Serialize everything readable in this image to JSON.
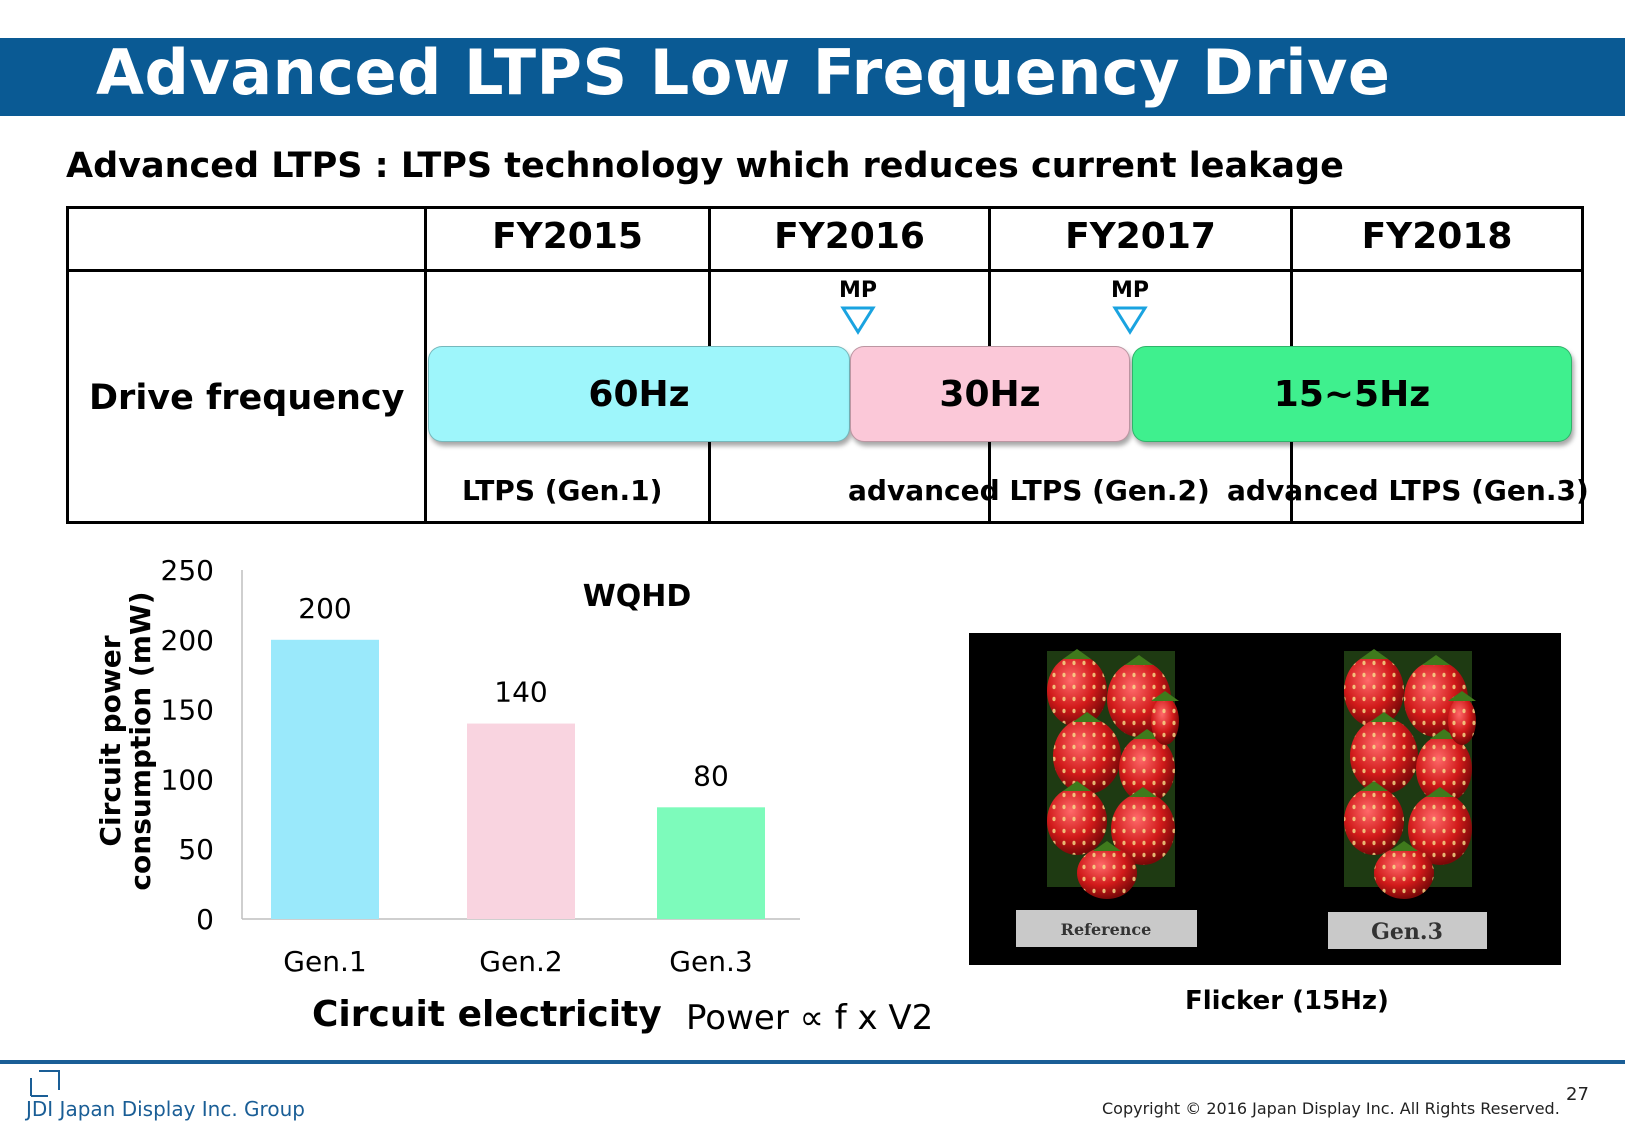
{
  "title": "Advanced LTPS Low Frequency Drive",
  "subtitle": "Advanced LTPS :  LTPS technology which reduces current leakage",
  "roadmap": {
    "years": [
      "FY2015",
      "FY2016",
      "FY2017",
      "FY2018"
    ],
    "row_label": "Drive frequency",
    "milestones": [
      "MP",
      "MP"
    ],
    "bars": [
      {
        "label": "60Hz",
        "color": "#9ef6fb"
      },
      {
        "label": "30Hz",
        "color": "#fbc8d8"
      },
      {
        "label": "15~5Hz",
        "color": "#3ff08e"
      }
    ],
    "generations": [
      "LTPS (Gen.1)",
      "advanced LTPS (Gen.2)",
      "advanced LTPS (Gen.3)"
    ]
  },
  "chart_data": {
    "type": "bar",
    "title": "WQHD",
    "categories": [
      "Gen.1",
      "Gen.2",
      "Gen.3"
    ],
    "values": [
      200,
      140,
      80
    ],
    "colors": [
      "#9ae9fb",
      "#f9d4e0",
      "#7dfbbb"
    ],
    "ylabel": "Circuit power consumption (mW)",
    "ylim": [
      0,
      250
    ],
    "yticks": [
      0,
      50,
      100,
      150,
      200,
      250
    ],
    "grid": false
  },
  "chart_caption": "Circuit electricity",
  "formula": "Power ∝ f x V2",
  "photo": {
    "left_label": "Reference",
    "right_label": "Gen.3",
    "caption": "Flicker (15Hz)"
  },
  "footer": {
    "brand": "JDI Japan Display Inc. Group",
    "copyright": "Copyright © 2016 Japan Display Inc. All Rights Reserved.",
    "page": "27"
  }
}
